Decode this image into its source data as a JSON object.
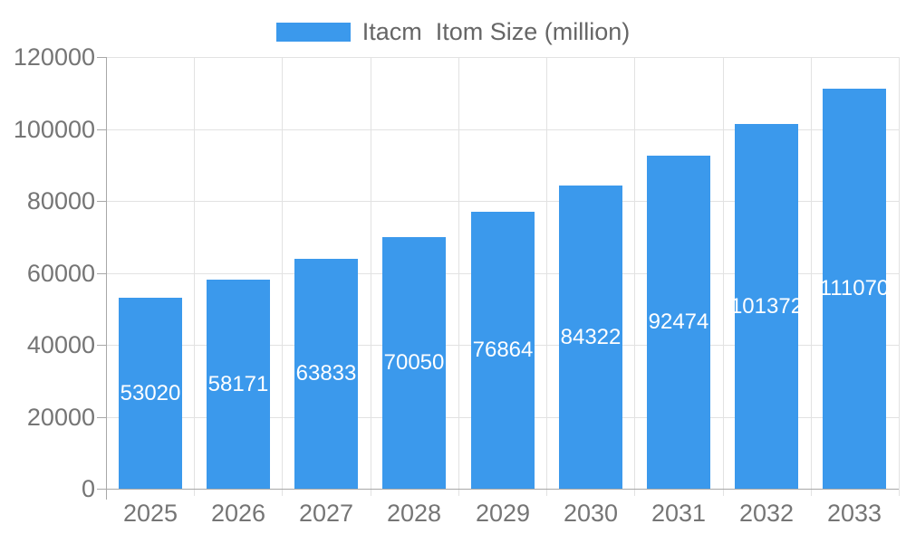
{
  "chart_data": {
    "type": "bar",
    "title": "",
    "categories": [
      "2025",
      "2026",
      "2027",
      "2028",
      "2029",
      "2030",
      "2031",
      "2032",
      "2033"
    ],
    "series": [
      {
        "name": "Itacm  Itom Size (million)",
        "values": [
          53020,
          58171,
          63833,
          70050,
          76864,
          84322,
          92474,
          101372,
          111070
        ],
        "color": "#3B99EC"
      }
    ],
    "xlabel": "",
    "ylabel": "",
    "ylim": [
      0,
      120000
    ],
    "yticks": [
      0,
      20000,
      40000,
      60000,
      80000,
      100000,
      120000
    ],
    "grid": true,
    "legend_position": "top",
    "bar_labels": "inside-middle",
    "bar_label_color": "#FFFFFF"
  },
  "colors": {
    "background": "#FFFFFF",
    "grid_line": "#E2E2E2",
    "axis_line": "#A8A8A8",
    "axis_text": "#757575",
    "legend_text": "#666666",
    "bar": "#3B99EC",
    "bar_label": "#FFFFFF"
  }
}
